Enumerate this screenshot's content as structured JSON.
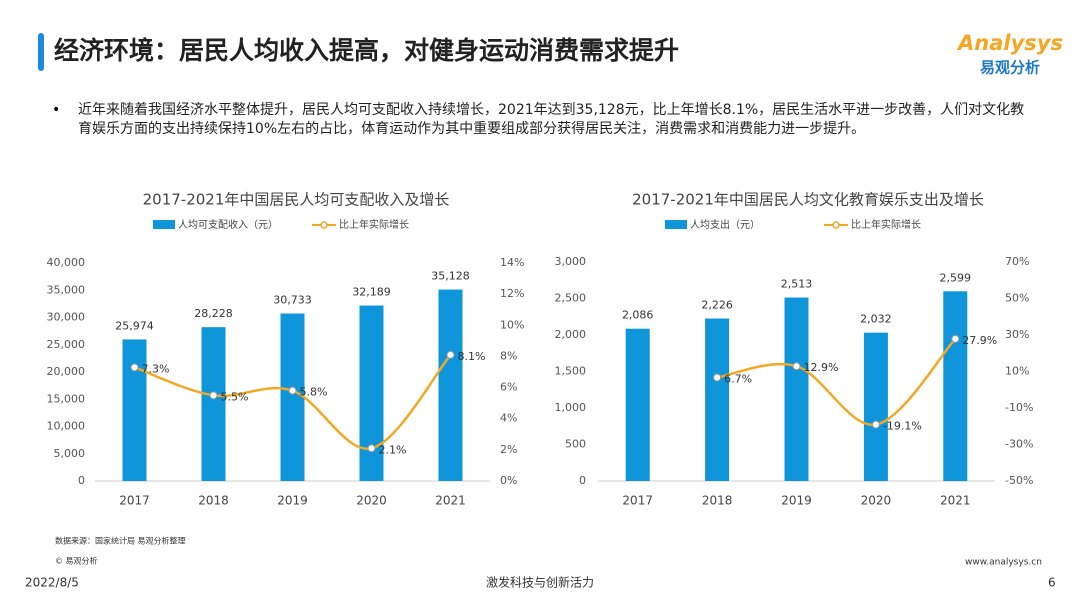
{
  "header": {
    "title": "经济环境：居民人均收入提高，对健身运动消费需求提升",
    "logo": "Analysys",
    "logo_cn": "易观分析"
  },
  "bullet": "近年来随着我国经济水平整体提升，居民人均可支配收入持续增长，2021年达到35,128元，比上年增长8.1%，居民生活水平进一步改善，人们对文化教育娱乐方面的支出持续保持10%左右的占比，体育运动作为其中重要组成部分获得居民关注，消费需求和消费能力进一步提升。",
  "chart_data": [
    {
      "type": "bar_line",
      "title": "2017-2021年中国居民人均可支配收入及增长",
      "categories": [
        "2017",
        "2018",
        "2019",
        "2020",
        "2021"
      ],
      "series": [
        {
          "name": "人均可支配收入（元）",
          "color": "#0f95d9",
          "values": [
            25974,
            28228,
            30733,
            32189,
            35128
          ],
          "value_labels": [
            "25,974",
            "28,228",
            "30,733",
            "32,189",
            "35,128"
          ]
        },
        {
          "name": "比上年实际增长",
          "color": "#f5a623",
          "axis": "y2",
          "values": [
            7.3,
            5.5,
            5.8,
            2.1,
            8.1
          ],
          "value_labels": [
            "7.3%",
            "5.5%",
            "5.8%",
            "2.1%",
            "8.1%"
          ]
        }
      ],
      "ylim": [
        0,
        40000
      ],
      "yticks": [
        0,
        {
          "value": 5000,
          "label": "5,000"
        },
        {
          "value": 10000,
          "label": "10,000"
        },
        {
          "value": 15000,
          "label": "15,000"
        },
        {
          "value": 20000,
          "label": "20,000"
        },
        {
          "value": 25000,
          "label": "25,000"
        },
        {
          "value": 30000,
          "label": "30,000"
        },
        {
          "value": 35000,
          "label": "35,000"
        },
        {
          "value": 40000,
          "label": "40,000"
        }
      ],
      "y2lim": [
        0,
        14
      ],
      "y2ticks": [
        {
          "value": 0,
          "label": "0%"
        },
        {
          "value": 2,
          "label": "2%"
        },
        {
          "value": 4,
          "label": "4%"
        },
        {
          "value": 6,
          "label": "6%"
        },
        {
          "value": 8,
          "label": "8%"
        },
        {
          "value": 10,
          "label": "10%"
        },
        {
          "value": 12,
          "label": "12%"
        },
        {
          "value": 14,
          "label": "14%"
        }
      ]
    },
    {
      "type": "bar_line",
      "title": "2017-2021年中国居民人均文化教育娱乐支出及增长",
      "categories": [
        "2017",
        "2018",
        "2019",
        "2020",
        "2021"
      ],
      "series": [
        {
          "name": "人均支出（元）",
          "color": "#0f95d9",
          "values": [
            2086,
            2226,
            2513,
            2032,
            2599
          ],
          "value_labels": [
            "2,086",
            "2,226",
            "2,513",
            "2,032",
            "2,599"
          ]
        },
        {
          "name": "比上年实际增长",
          "color": "#f5a623",
          "axis": "y2",
          "values": [
            null,
            6.7,
            12.9,
            -19.1,
            27.9
          ],
          "value_labels": [
            null,
            "6.7%",
            "12.9%",
            "-19.1%",
            "27.9%"
          ]
        }
      ],
      "ylim": [
        0,
        3000
      ],
      "yticks": [
        0,
        500,
        {
          "value": 1000,
          "label": "1,000"
        },
        {
          "value": 1500,
          "label": "1,500"
        },
        {
          "value": 2000,
          "label": "2,000"
        },
        {
          "value": 2500,
          "label": "2,500"
        },
        {
          "value": 3000,
          "label": "3,000"
        }
      ],
      "y2lim": [
        -50,
        70
      ],
      "y2ticks": [
        {
          "value": -50,
          "label": "-50%"
        },
        {
          "value": -30,
          "label": "-30%"
        },
        {
          "value": -10,
          "label": "-10%"
        },
        {
          "value": 10,
          "label": "10%"
        },
        {
          "value": 30,
          "label": "30%"
        },
        {
          "value": 50,
          "label": "50%"
        },
        {
          "value": 70,
          "label": "70%"
        }
      ]
    }
  ],
  "source": "数据来源：国家统计局 易观分析整理",
  "copyright": "© 易观分析",
  "website": "www.analysys.cn",
  "date": "2022/8/5",
  "slogan": "激发科技与创新活力",
  "page": "6"
}
